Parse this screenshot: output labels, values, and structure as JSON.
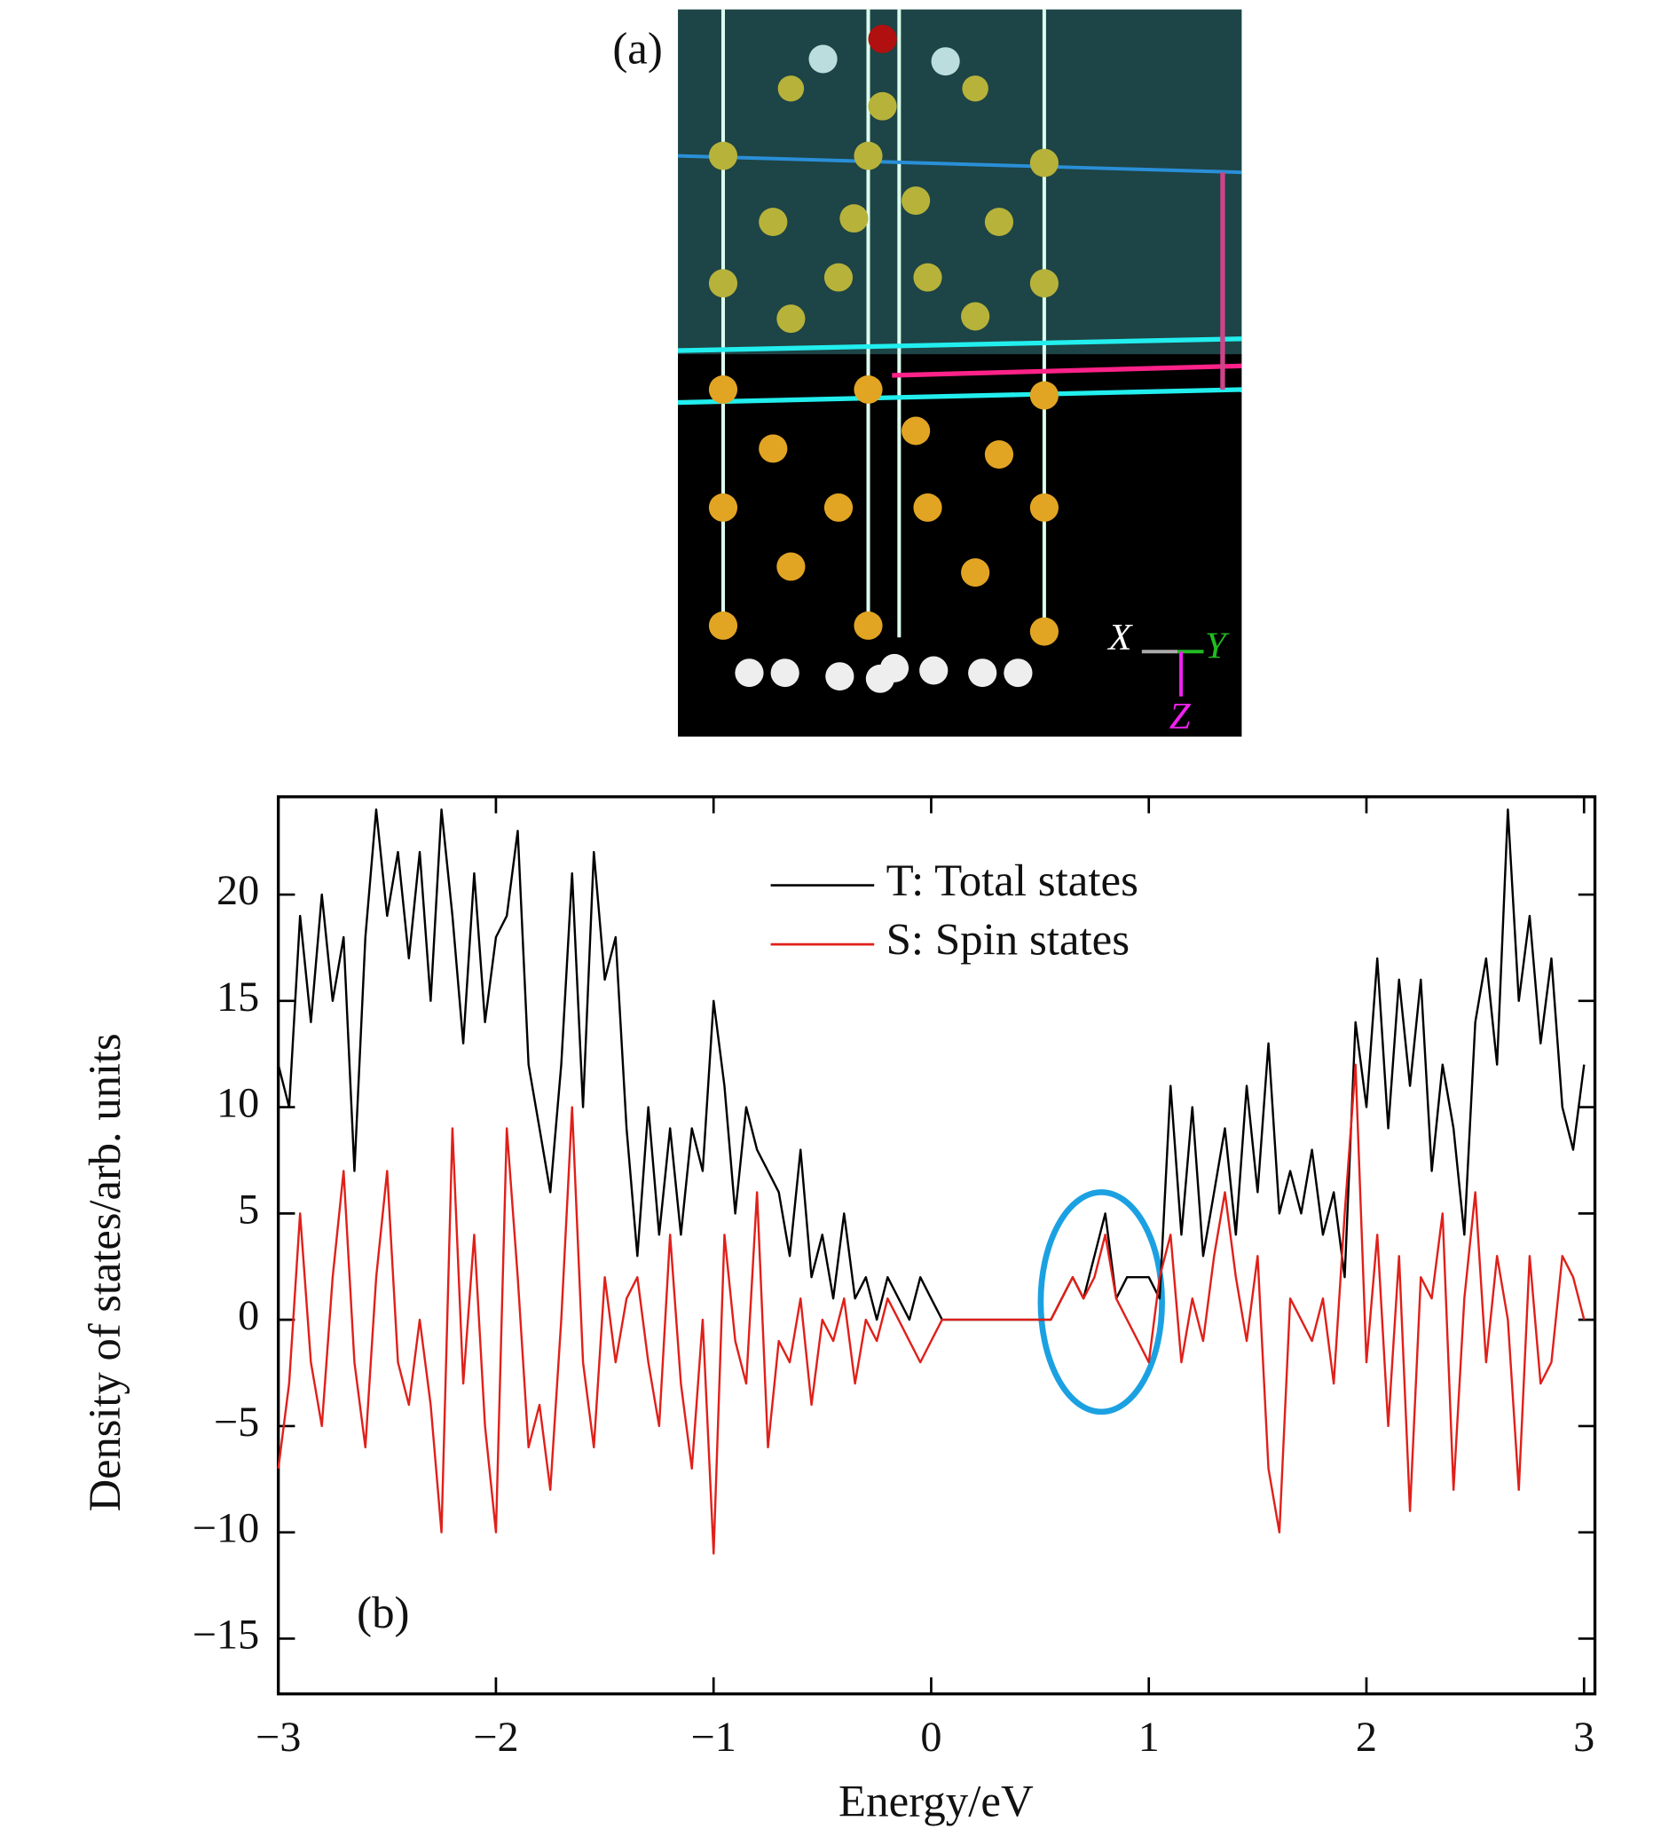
{
  "panel_a": {
    "label": "(a)",
    "axes": [
      "X",
      "Y",
      "Z"
    ]
  },
  "chart_data": {
    "type": "line",
    "annotation": "(b)",
    "x_label": "Energy/eV",
    "y_label": "Density of states/arb. units",
    "xlim": [
      -3,
      3.05
    ],
    "ylim": [
      -17.6,
      24.6
    ],
    "xticks": [
      {
        "value": -3,
        "label": "−3"
      },
      {
        "value": -2,
        "label": "−2"
      },
      {
        "value": -1,
        "label": "−1"
      },
      0,
      1,
      2,
      3
    ],
    "yticks": [
      {
        "value": -15,
        "label": "−15"
      },
      {
        "value": -10,
        "label": "−10"
      },
      {
        "value": -5,
        "label": "−5"
      },
      0,
      5,
      10,
      15,
      20
    ],
    "legend": "upper center",
    "x": [
      -3.0,
      -2.95,
      -2.9,
      -2.85,
      -2.8,
      -2.75,
      -2.7,
      -2.65,
      -2.6,
      -2.55,
      -2.5,
      -2.45,
      -2.4,
      -2.35,
      -2.3,
      -2.25,
      -2.2,
      -2.15,
      -2.1,
      -2.05,
      -2.0,
      -1.95,
      -1.9,
      -1.85,
      -1.8,
      -1.75,
      -1.7,
      -1.65,
      -1.6,
      -1.55,
      -1.5,
      -1.45,
      -1.4,
      -1.35,
      -1.3,
      -1.25,
      -1.2,
      -1.15,
      -1.1,
      -1.05,
      -1.0,
      -0.95,
      -0.9,
      -0.85,
      -0.8,
      -0.75,
      -0.7,
      -0.65,
      -0.6,
      -0.55,
      -0.5,
      -0.45,
      -0.4,
      -0.35,
      -0.3,
      -0.25,
      -0.2,
      -0.15,
      -0.1,
      -0.05,
      0.0,
      0.05,
      0.1,
      0.15,
      0.2,
      0.25,
      0.3,
      0.35,
      0.4,
      0.45,
      0.5,
      0.55,
      0.6,
      0.65,
      0.7,
      0.75,
      0.8,
      0.85,
      0.9,
      0.95,
      1.0,
      1.05,
      1.1,
      1.15,
      1.2,
      1.25,
      1.3,
      1.35,
      1.4,
      1.45,
      1.5,
      1.55,
      1.6,
      1.65,
      1.7,
      1.75,
      1.8,
      1.85,
      1.9,
      1.95,
      2.0,
      2.05,
      2.1,
      2.15,
      2.2,
      2.25,
      2.3,
      2.35,
      2.4,
      2.45,
      2.5,
      2.55,
      2.6,
      2.65,
      2.7,
      2.75,
      2.8,
      2.85,
      2.9,
      2.95,
      3.0
    ],
    "series": [
      {
        "name": "T: Total states",
        "color": "#000000",
        "values": [
          12,
          10,
          19,
          14,
          20,
          15,
          18,
          7,
          18,
          24,
          19,
          22,
          17,
          22,
          15,
          24,
          19,
          13,
          21,
          14,
          18,
          19,
          23,
          12,
          9,
          6,
          12,
          21,
          10,
          22,
          16,
          18,
          9,
          3,
          10,
          4,
          9,
          4,
          9,
          7,
          15,
          11,
          5,
          10,
          8,
          7,
          6,
          3,
          8,
          2,
          4,
          1,
          5,
          1,
          2,
          0,
          2,
          1,
          0,
          2,
          1,
          0,
          0,
          0,
          0,
          0,
          0,
          0,
          0,
          0,
          0,
          0,
          1,
          2,
          1,
          3,
          5,
          1,
          2,
          2,
          2,
          1,
          11,
          4,
          10,
          3,
          6,
          9,
          4,
          11,
          6,
          13,
          5,
          7,
          5,
          8,
          4,
          6,
          2,
          14,
          10,
          17,
          9,
          16,
          11,
          16,
          7,
          12,
          9,
          4,
          14,
          17,
          12,
          24,
          15,
          19,
          13,
          17,
          10,
          8,
          12
        ]
      },
      {
        "name": "S: Spin states",
        "color": "#e0201a",
        "values": [
          -7,
          -3,
          5,
          -2,
          -5,
          2,
          7,
          -2,
          -6,
          2,
          7,
          -2,
          -4,
          0,
          -4,
          -10,
          9,
          -3,
          4,
          -5,
          -10,
          9,
          2,
          -6,
          -4,
          -8,
          0,
          10,
          -2,
          -6,
          2,
          -2,
          1,
          2,
          -2,
          -5,
          4,
          -3,
          -7,
          0,
          -11,
          4,
          -1,
          -3,
          6,
          -6,
          -1,
          -2,
          1,
          -4,
          0,
          -1,
          1,
          -3,
          0,
          -1,
          1,
          0,
          -1,
          -2,
          -1,
          0,
          0,
          0,
          0,
          0,
          0,
          0,
          0,
          0,
          0,
          0,
          1,
          2,
          1,
          2,
          4,
          1,
          0,
          -1,
          -2,
          2,
          4,
          -2,
          1,
          -1,
          3,
          6,
          2,
          -1,
          3,
          -7,
          -10,
          1,
          0,
          -1,
          1,
          -3,
          5,
          12,
          -2,
          4,
          -5,
          3,
          -9,
          2,
          1,
          5,
          -8,
          1,
          6,
          -2,
          3,
          0,
          -8,
          3,
          -3,
          -2,
          3,
          2,
          0
        ]
      }
    ]
  }
}
